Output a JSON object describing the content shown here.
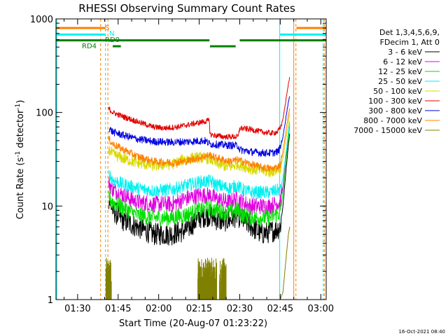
{
  "chart_data": {
    "type": "line",
    "title": "RHESSI Observing Summary Count Rates",
    "xlabel": "Start Time (20-Aug-07 01:23:22)",
    "ylabel_main": "Count Rate (s",
    "ylabel_sup1": "-1",
    "ylabel_mid": " detector",
    "ylabel_sup2": "-1",
    "ylabel_end": ")",
    "yscale": "log",
    "ylim": [
      1,
      1000
    ],
    "xlim_minutes": [
      82,
      182
    ],
    "x_ticks": [
      {
        "label": "01:30",
        "min": 90
      },
      {
        "label": "01:45",
        "min": 105
      },
      {
        "label": "02:00",
        "min": 120
      },
      {
        "label": "02:15",
        "min": 135
      },
      {
        "label": "02:30",
        "min": 150
      },
      {
        "label": "02:45",
        "min": 165
      },
      {
        "label": "03:00",
        "min": 180
      }
    ],
    "y_ticks": [
      {
        "label": "1",
        "value": 1
      },
      {
        "label": "10",
        "value": 10
      },
      {
        "label": "100",
        "value": 100
      },
      {
        "label": "1000",
        "value": 1000
      }
    ],
    "legend": {
      "header1": "Det 1,3,4,5,6,9,",
      "header2": "FDecim 1, Att 0",
      "entries": [
        {
          "label": "3 - 6 keV",
          "color": "#000000"
        },
        {
          "label": "6 - 12 keV",
          "color": "#e000e0"
        },
        {
          "label": "12 - 25 keV",
          "color": "#00e000"
        },
        {
          "label": "25 - 50 keV",
          "color": "#00f0f0"
        },
        {
          "label": "50 - 100 keV",
          "color": "#d8d800"
        },
        {
          "label": "100 - 300 keV",
          "color": "#e00000"
        },
        {
          "label": "300 - 800 keV",
          "color": "#0000e0"
        },
        {
          "label": "800 - 7000 keV",
          "color": "#ff8000"
        },
        {
          "label": "7000 - 15000 keV",
          "color": "#808000"
        }
      ]
    },
    "series": [
      {
        "name": "3 - 6 keV",
        "color": "#000000",
        "noise": 0.12,
        "points": [
          [
            101.5,
            12
          ],
          [
            103,
            9
          ],
          [
            107,
            7
          ],
          [
            112,
            6
          ],
          [
            118,
            5
          ],
          [
            125,
            5
          ],
          [
            130,
            5.5
          ],
          [
            135,
            7.5
          ],
          [
            139,
            8
          ],
          [
            142,
            7
          ],
          [
            146,
            7
          ],
          [
            149,
            8
          ],
          [
            153,
            6.5
          ],
          [
            158,
            5
          ],
          [
            161,
            5.3
          ],
          [
            163,
            5.5
          ],
          [
            165,
            6
          ],
          [
            166,
            10
          ],
          [
            167,
            22
          ],
          [
            168,
            45
          ],
          [
            168.5,
            60
          ]
        ]
      },
      {
        "name": "6 - 12 keV",
        "color": "#e000e0",
        "noise": 0.09,
        "points": [
          [
            101.5,
            18
          ],
          [
            103,
            15
          ],
          [
            107,
            13
          ],
          [
            112,
            11
          ],
          [
            118,
            10.5
          ],
          [
            125,
            10.5
          ],
          [
            130,
            12
          ],
          [
            135,
            13
          ],
          [
            139,
            13
          ],
          [
            141,
            12
          ],
          [
            146,
            11
          ],
          [
            149,
            12
          ],
          [
            151,
            11
          ],
          [
            154,
            10
          ],
          [
            158,
            10
          ],
          [
            161,
            10
          ],
          [
            163,
            10.5
          ],
          [
            165,
            11
          ],
          [
            166,
            16
          ],
          [
            167,
            30
          ],
          [
            168,
            55
          ],
          [
            168.5,
            75
          ]
        ]
      },
      {
        "name": "12 - 25 keV",
        "color": "#00e000",
        "noise": 0.09,
        "points": [
          [
            101.5,
            13
          ],
          [
            103,
            11
          ],
          [
            107,
            9.5
          ],
          [
            112,
            8
          ],
          [
            118,
            7.5
          ],
          [
            125,
            7.5
          ],
          [
            130,
            8
          ],
          [
            135,
            9
          ],
          [
            139,
            9.5
          ],
          [
            141,
            9
          ],
          [
            146,
            8.5
          ],
          [
            149,
            9
          ],
          [
            151,
            8
          ],
          [
            154,
            7.5
          ],
          [
            158,
            7.5
          ],
          [
            161,
            7.5
          ],
          [
            163,
            8
          ],
          [
            165,
            8.5
          ],
          [
            166,
            14
          ],
          [
            167,
            28
          ],
          [
            168,
            52
          ],
          [
            168.5,
            72
          ]
        ]
      },
      {
        "name": "25 - 50 keV",
        "color": "#00f0f0",
        "noise": 0.07,
        "points": [
          [
            101.5,
            22
          ],
          [
            103,
            19
          ],
          [
            107,
            17
          ],
          [
            112,
            15.5
          ],
          [
            118,
            14.5
          ],
          [
            125,
            15
          ],
          [
            130,
            16.5
          ],
          [
            135,
            18
          ],
          [
            139,
            18.5
          ],
          [
            141,
            17
          ],
          [
            146,
            15.5
          ],
          [
            149,
            16.5
          ],
          [
            151,
            15
          ],
          [
            154,
            14
          ],
          [
            158,
            14
          ],
          [
            161,
            14
          ],
          [
            163,
            14.5
          ],
          [
            165,
            15
          ],
          [
            166,
            20
          ],
          [
            167,
            35
          ],
          [
            168,
            60
          ],
          [
            168.5,
            80
          ]
        ]
      },
      {
        "name": "50 - 100 keV",
        "color": "#d8d800",
        "noise": 0.06,
        "points": [
          [
            101.5,
            40
          ],
          [
            103,
            36
          ],
          [
            107,
            32
          ],
          [
            112,
            29
          ],
          [
            118,
            27
          ],
          [
            125,
            28
          ],
          [
            130,
            32
          ],
          [
            135,
            33
          ],
          [
            139,
            32
          ],
          [
            141,
            29
          ],
          [
            146,
            26
          ],
          [
            149,
            28
          ],
          [
            151,
            27
          ],
          [
            154,
            25
          ],
          [
            158,
            24
          ],
          [
            161,
            23
          ],
          [
            163,
            24
          ],
          [
            165,
            25
          ],
          [
            166,
            32
          ],
          [
            167,
            50
          ],
          [
            168,
            75
          ],
          [
            168.5,
            100
          ]
        ]
      },
      {
        "name": "100 - 300 keV",
        "color": "#e00000",
        "noise": 0.03,
        "points": [
          [
            101.5,
            110
          ],
          [
            103,
            100
          ],
          [
            107,
            90
          ],
          [
            112,
            80
          ],
          [
            118,
            70
          ],
          [
            122,
            68
          ],
          [
            127,
            70
          ],
          [
            132,
            75
          ],
          [
            137,
            80
          ],
          [
            138.8,
            82
          ],
          [
            139,
            58
          ],
          [
            144,
            55
          ],
          [
            149.5,
            55
          ],
          [
            150,
            68
          ],
          [
            154,
            66
          ],
          [
            158,
            62
          ],
          [
            162,
            60
          ],
          [
            164,
            62
          ],
          [
            165,
            68
          ],
          [
            166,
            85
          ],
          [
            167,
            130
          ],
          [
            168,
            200
          ],
          [
            168.5,
            240
          ]
        ]
      },
      {
        "name": "300 - 800 keV",
        "color": "#0000e0",
        "noise": 0.04,
        "points": [
          [
            101.5,
            68
          ],
          [
            103,
            62
          ],
          [
            107,
            57
          ],
          [
            112,
            52
          ],
          [
            118,
            49
          ],
          [
            125,
            48
          ],
          [
            132,
            49
          ],
          [
            137,
            50
          ],
          [
            139,
            46
          ],
          [
            144,
            45
          ],
          [
            149.5,
            44
          ],
          [
            150,
            40
          ],
          [
            154,
            38
          ],
          [
            158,
            37
          ],
          [
            162,
            37
          ],
          [
            164,
            38
          ],
          [
            165,
            42
          ],
          [
            166,
            55
          ],
          [
            167,
            85
          ],
          [
            168,
            130
          ],
          [
            168.5,
            150
          ]
        ]
      },
      {
        "name": "800 - 7000 keV",
        "color": "#ff8000",
        "noise": 0.04,
        "points": [
          [
            101.5,
            52
          ],
          [
            103,
            46
          ],
          [
            107,
            40
          ],
          [
            112,
            34
          ],
          [
            118,
            30
          ],
          [
            125,
            29
          ],
          [
            130,
            30
          ],
          [
            135,
            33
          ],
          [
            139,
            35
          ],
          [
            141,
            33
          ],
          [
            146,
            30
          ],
          [
            149,
            31
          ],
          [
            151,
            30
          ],
          [
            154,
            28
          ],
          [
            158,
            26
          ],
          [
            162,
            25
          ],
          [
            164,
            26
          ],
          [
            165,
            28
          ],
          [
            166,
            38
          ],
          [
            167,
            60
          ],
          [
            168,
            95
          ],
          [
            168.5,
            110
          ]
        ]
      }
    ],
    "series_7000": {
      "name": "7000 - 15000 keV",
      "color": "#808000",
      "bursts": [
        [
          100.5,
          102.5
        ],
        [
          134.5,
          141.5
        ],
        [
          142.5,
          145
        ]
      ],
      "rise_points": [
        [
          165,
          1
        ],
        [
          166,
          1.2
        ],
        [
          167,
          2.5
        ],
        [
          168,
          5
        ],
        [
          168.5,
          6
        ]
      ]
    },
    "vlines": [
      {
        "min": 82.3,
        "color": "#00f0f0",
        "style": "solid"
      },
      {
        "min": 98.5,
        "color": "#ff8000",
        "style": "dashed"
      },
      {
        "min": 100.3,
        "color": "#00f0f0",
        "style": "dashed"
      },
      {
        "min": 101.2,
        "color": "#ff8000",
        "style": "dashed"
      },
      {
        "min": 164.8,
        "color": "#00f0f0",
        "style": "solid"
      },
      {
        "min": 170,
        "color": "#ff8000",
        "style": "solid"
      },
      {
        "min": 170.8,
        "color": "#ff8000",
        "style": "dashed"
      },
      {
        "min": 180.9,
        "color": "#00f0f0",
        "style": "dashed"
      },
      {
        "min": 181.3,
        "color": "#ff8000",
        "style": "dashed"
      }
    ],
    "flag_bars": [
      {
        "color": "#ff8000",
        "value": 800,
        "segments": [
          [
            82,
            100.3
          ],
          [
            171,
            182
          ]
        ]
      },
      {
        "color": "#00f0f0",
        "value": 680,
        "segments": [
          [
            82,
            100.3
          ],
          [
            164.8,
            182
          ]
        ]
      },
      {
        "color": "#008000",
        "value": 590,
        "segments": [
          [
            82,
            138.8
          ],
          [
            150,
            182
          ]
        ]
      },
      {
        "color": "#008000",
        "value": 510,
        "segments": [
          [
            103,
            106
          ],
          [
            139,
            148.5
          ]
        ]
      }
    ],
    "flag_labels": [
      {
        "text": "S",
        "color": "#ff8000"
      },
      {
        "text": "N",
        "color": "#00f0f0"
      },
      {
        "text": "RD0",
        "color": "#008000"
      },
      {
        "text": "RD4",
        "color": "#008000"
      }
    ],
    "timestamp": "16-Oct-2021 08:40"
  }
}
